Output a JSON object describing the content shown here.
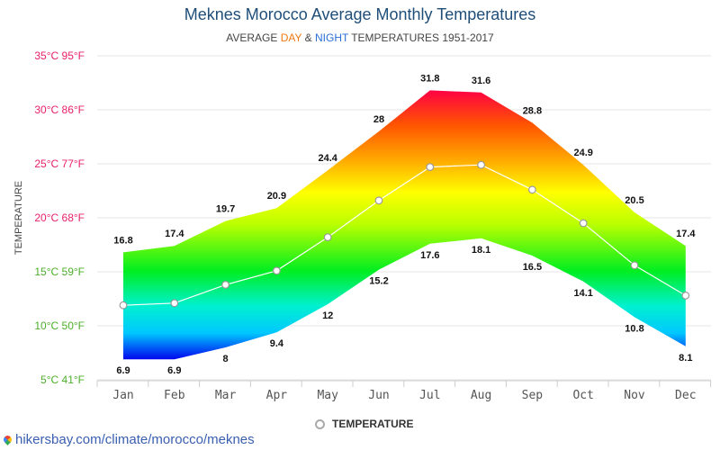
{
  "title": "Meknes Morocco Average Monthly Temperatures",
  "subtitle": {
    "prefix": "AVERAGE ",
    "day": "DAY",
    "mid": " & ",
    "night": "NIGHT",
    "suffix": " TEMPERATURES 1951-2017"
  },
  "legend": {
    "label": "TEMPERATURE"
  },
  "source": "hikersbay.com/climate/morocco/meknes",
  "chart_data": {
    "type": "area",
    "categories": [
      "Jan",
      "Feb",
      "Mar",
      "Apr",
      "May",
      "Jun",
      "Jul",
      "Aug",
      "Sep",
      "Oct",
      "Nov",
      "Dec"
    ],
    "series": [
      {
        "name": "DAY",
        "values": [
          16.8,
          17.4,
          19.7,
          20.9,
          24.4,
          28,
          31.8,
          31.6,
          28.8,
          24.9,
          20.5,
          17.4
        ]
      },
      {
        "name": "NIGHT",
        "values": [
          6.9,
          6.9,
          8,
          9.4,
          12,
          15.2,
          17.6,
          18.1,
          16.5,
          14.1,
          10.8,
          8.1
        ]
      },
      {
        "name": "TEMPERATURE",
        "values": [
          11.9,
          12.1,
          13.8,
          15.1,
          18.2,
          21.6,
          24.7,
          24.9,
          22.6,
          19.5,
          15.6,
          12.8
        ]
      }
    ],
    "ylabel": "TEMPERATURE",
    "ylim": [
      5,
      35
    ],
    "yticks": [
      {
        "value": 35,
        "label": "35°C 95°F",
        "color": "#e8206a"
      },
      {
        "value": 30,
        "label": "30°C 86°F",
        "color": "#e8206a"
      },
      {
        "value": 25,
        "label": "25°C 77°F",
        "color": "#e8206a"
      },
      {
        "value": 20,
        "label": "20°C 68°F",
        "color": "#e8206a"
      },
      {
        "value": 15,
        "label": "15°C 59°F",
        "color": "#4caf2a"
      },
      {
        "value": 10,
        "label": "10°C 50°F",
        "color": "#4caf2a"
      },
      {
        "value": 5,
        "label": "5°C 41°F",
        "color": "#4caf2a"
      }
    ],
    "grid": true,
    "legend_position": "bottom"
  }
}
